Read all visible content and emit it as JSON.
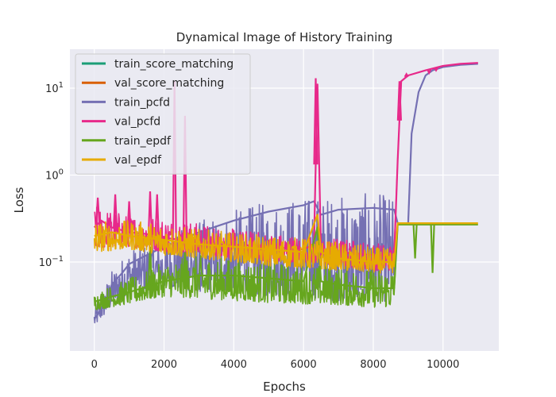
{
  "chart_data": {
    "type": "line",
    "title": "Dynamical Image of History Training",
    "xlabel": "Epochs",
    "ylabel": "Loss",
    "yscale": "log",
    "xlim": [
      -700,
      11600
    ],
    "ylim": [
      0.0095,
      28
    ],
    "grid": true,
    "legend_position": "top-left",
    "x_ticks": [
      0,
      2000,
      4000,
      6000,
      8000,
      10000
    ],
    "x_tick_labels": [
      "0",
      "2000",
      "4000",
      "6000",
      "8000",
      "10000"
    ],
    "y_ticks": [
      0.1,
      1,
      10
    ],
    "y_tick_base": "10",
    "y_tick_exponents": [
      "−1",
      "0",
      "1"
    ],
    "series": [
      {
        "name": "train_score_matching",
        "color": "#1b9e77",
        "points": []
      },
      {
        "name": "val_score_matching",
        "color": "#d95f02",
        "points": []
      },
      {
        "name": "train_pcfd",
        "color": "#7570b3",
        "points": [
          [
            0,
            0.022
          ],
          [
            100,
            0.025
          ],
          [
            300,
            0.035
          ],
          [
            500,
            0.055
          ],
          [
            800,
            0.075
          ],
          [
            1000,
            0.095
          ],
          [
            1500,
            0.12
          ],
          [
            2000,
            0.15
          ],
          [
            2500,
            0.18
          ],
          [
            3000,
            0.22
          ],
          [
            4000,
            0.3
          ],
          [
            5000,
            0.38
          ],
          [
            6000,
            0.45
          ],
          [
            6300,
            0.5
          ],
          [
            6500,
            0.35
          ],
          [
            7000,
            0.4
          ],
          [
            8000,
            0.42
          ],
          [
            8600,
            0.4
          ],
          [
            8700,
            0.28
          ],
          [
            9000,
            0.28
          ],
          [
            9100,
            3
          ],
          [
            9300,
            9
          ],
          [
            9500,
            14
          ],
          [
            9700,
            16
          ],
          [
            10000,
            17.5
          ],
          [
            10500,
            18.5
          ],
          [
            11000,
            19
          ]
        ],
        "envelope_low": [
          [
            0,
            0.018
          ],
          [
            500,
            0.03
          ],
          [
            1000,
            0.045
          ],
          [
            2000,
            0.05
          ],
          [
            3000,
            0.045
          ],
          [
            4000,
            0.045
          ],
          [
            5000,
            0.04
          ],
          [
            6000,
            0.04
          ],
          [
            7000,
            0.035
          ],
          [
            8000,
            0.035
          ],
          [
            8600,
            0.035
          ]
        ],
        "envelope_high": [
          [
            0,
            0.03
          ],
          [
            500,
            0.08
          ],
          [
            1000,
            0.14
          ],
          [
            2000,
            0.2
          ],
          [
            3000,
            0.3
          ],
          [
            4000,
            0.4
          ],
          [
            5000,
            0.5
          ],
          [
            6000,
            0.58
          ],
          [
            7000,
            0.6
          ],
          [
            8000,
            0.62
          ],
          [
            8600,
            0.6
          ]
        ]
      },
      {
        "name": "val_pcfd",
        "color": "#e7298a",
        "points": [
          [
            0,
            0.25
          ],
          [
            200,
            0.3
          ],
          [
            500,
            0.25
          ],
          [
            1000,
            0.22
          ],
          [
            1500,
            0.21
          ],
          [
            2000,
            0.19
          ],
          [
            2500,
            0.18
          ],
          [
            3000,
            0.17
          ],
          [
            3500,
            0.16
          ],
          [
            4000,
            0.16
          ],
          [
            5000,
            0.15
          ],
          [
            6000,
            0.14
          ],
          [
            6300,
            0.16
          ],
          [
            6400,
            11
          ],
          [
            6500,
            0.14
          ],
          [
            7000,
            0.13
          ],
          [
            8000,
            0.12
          ],
          [
            8600,
            0.12
          ],
          [
            8700,
            1.5
          ],
          [
            8800,
            12
          ],
          [
            9000,
            14
          ],
          [
            9500,
            16
          ],
          [
            10000,
            18
          ],
          [
            10500,
            19
          ],
          [
            11000,
            19.5
          ]
        ],
        "envelope_low": [
          [
            0,
            0.14
          ],
          [
            1000,
            0.15
          ],
          [
            2000,
            0.13
          ],
          [
            3000,
            0.12
          ],
          [
            4000,
            0.11
          ],
          [
            5000,
            0.1
          ],
          [
            6000,
            0.1
          ],
          [
            7000,
            0.09
          ],
          [
            8000,
            0.08
          ],
          [
            8600,
            0.08
          ]
        ],
        "envelope_high": [
          [
            0,
            0.45
          ],
          [
            1000,
            0.35
          ],
          [
            2000,
            0.33
          ],
          [
            3000,
            0.28
          ],
          [
            4000,
            0.24
          ],
          [
            5000,
            0.22
          ],
          [
            6000,
            0.2
          ],
          [
            7000,
            0.19
          ],
          [
            8000,
            0.17
          ],
          [
            8600,
            0.16
          ]
        ],
        "spikes": [
          [
            100,
            0.55
          ],
          [
            600,
            0.6
          ],
          [
            1000,
            0.5
          ],
          [
            1600,
            0.65
          ],
          [
            2300,
            12
          ],
          [
            2600,
            4.8
          ],
          [
            1800,
            0.6
          ],
          [
            6350,
            13
          ],
          [
            8750,
            12
          ],
          [
            8950,
            14.5
          ],
          [
            9600,
            15
          ],
          [
            9800,
            16
          ]
        ]
      },
      {
        "name": "train_epdf",
        "color": "#66a61e",
        "points": [
          [
            0,
            0.035
          ],
          [
            500,
            0.04
          ],
          [
            1000,
            0.045
          ],
          [
            2000,
            0.06
          ],
          [
            3000,
            0.07
          ],
          [
            4000,
            0.07
          ],
          [
            5000,
            0.065
          ],
          [
            6000,
            0.06
          ],
          [
            6400,
            0.25
          ],
          [
            6500,
            0.06
          ],
          [
            7000,
            0.055
          ],
          [
            8000,
            0.05
          ],
          [
            8600,
            0.05
          ],
          [
            8700,
            0.27
          ],
          [
            9000,
            0.27
          ],
          [
            10000,
            0.27
          ],
          [
            11000,
            0.27
          ]
        ],
        "envelope_low": [
          [
            0,
            0.028
          ],
          [
            1000,
            0.033
          ],
          [
            2000,
            0.04
          ],
          [
            3000,
            0.038
          ],
          [
            4000,
            0.036
          ],
          [
            5000,
            0.034
          ],
          [
            6000,
            0.033
          ],
          [
            7000,
            0.032
          ],
          [
            8000,
            0.03
          ],
          [
            8600,
            0.03
          ]
        ],
        "envelope_high": [
          [
            0,
            0.045
          ],
          [
            1000,
            0.065
          ],
          [
            2000,
            0.1
          ],
          [
            3000,
            0.12
          ],
          [
            4000,
            0.11
          ],
          [
            5000,
            0.1
          ],
          [
            6000,
            0.095
          ],
          [
            7000,
            0.09
          ],
          [
            8000,
            0.085
          ],
          [
            8600,
            0.09
          ]
        ],
        "spikes": [
          [
            1600,
            0.15
          ],
          [
            2600,
            0.13
          ],
          [
            9200,
            0.11
          ],
          [
            9700,
            0.075
          ]
        ]
      },
      {
        "name": "val_epdf",
        "color": "#e6ab02",
        "points": [
          [
            0,
            0.2
          ],
          [
            500,
            0.22
          ],
          [
            1000,
            0.2
          ],
          [
            2000,
            0.18
          ],
          [
            3000,
            0.16
          ],
          [
            4000,
            0.15
          ],
          [
            5000,
            0.14
          ],
          [
            6000,
            0.13
          ],
          [
            6400,
            0.35
          ],
          [
            6500,
            0.13
          ],
          [
            7000,
            0.11
          ],
          [
            8000,
            0.1
          ],
          [
            8600,
            0.1
          ],
          [
            8700,
            0.28
          ],
          [
            9000,
            0.28
          ],
          [
            10000,
            0.28
          ],
          [
            11000,
            0.28
          ]
        ],
        "envelope_low": [
          [
            0,
            0.13
          ],
          [
            1000,
            0.14
          ],
          [
            2000,
            0.12
          ],
          [
            3000,
            0.11
          ],
          [
            4000,
            0.1
          ],
          [
            5000,
            0.09
          ],
          [
            6000,
            0.085
          ],
          [
            7000,
            0.08
          ],
          [
            8000,
            0.075
          ],
          [
            8600,
            0.075
          ]
        ],
        "envelope_high": [
          [
            0,
            0.3
          ],
          [
            1000,
            0.3
          ],
          [
            2000,
            0.28
          ],
          [
            3000,
            0.24
          ],
          [
            4000,
            0.22
          ],
          [
            5000,
            0.2
          ],
          [
            6000,
            0.19
          ],
          [
            7000,
            0.17
          ],
          [
            8000,
            0.15
          ],
          [
            8600,
            0.14
          ]
        ]
      }
    ]
  }
}
